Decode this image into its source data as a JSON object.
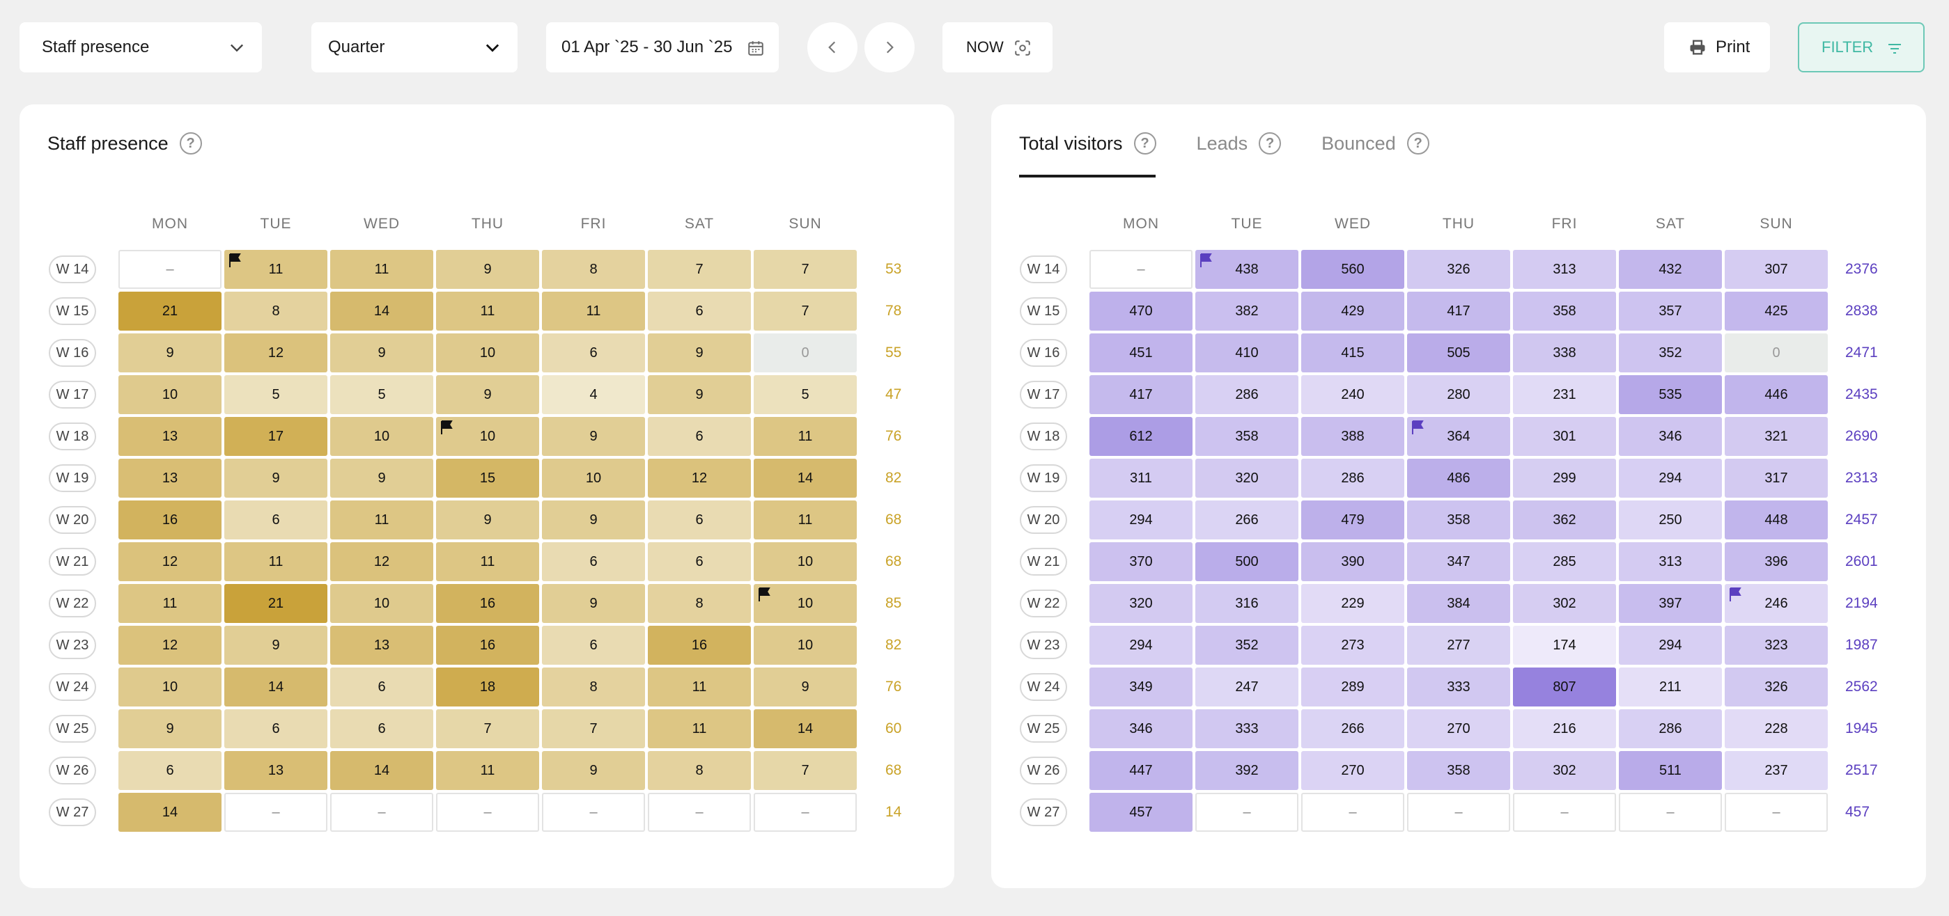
{
  "toolbar": {
    "report_select": "Staff presence",
    "period_select": "Quarter",
    "date_range": "01 Apr `25 - 30 Jun `25",
    "now_label": "NOW",
    "print_label": "Print",
    "filter_label": "FILTER"
  },
  "left_card": {
    "title": "Staff presence",
    "help": "?"
  },
  "right_card": {
    "tabs": [
      {
        "label": "Total visitors",
        "help": "?"
      },
      {
        "label": "Leads",
        "help": "?"
      },
      {
        "label": "Bounced",
        "help": "?"
      }
    ]
  },
  "days": [
    "MON",
    "TUE",
    "WED",
    "THU",
    "FRI",
    "SAT",
    "SUN"
  ],
  "weeks": [
    "W 14",
    "W 15",
    "W 16",
    "W 17",
    "W 18",
    "W 19",
    "W 20",
    "W 21",
    "W 22",
    "W 23",
    "W 24",
    "W 25",
    "W 26",
    "W 27"
  ],
  "empty_glyph": "–",
  "colors": {
    "gold_totals": "#c9a227",
    "purple_totals": "#5b3fc0",
    "filter_accent": "#3fb8a3"
  },
  "staff_presence": {
    "rows": [
      [
        null,
        11,
        11,
        9,
        8,
        7,
        7
      ],
      [
        21,
        8,
        14,
        11,
        11,
        6,
        7
      ],
      [
        9,
        12,
        9,
        10,
        6,
        9,
        0
      ],
      [
        10,
        5,
        5,
        9,
        4,
        9,
        5
      ],
      [
        13,
        17,
        10,
        10,
        9,
        6,
        11
      ],
      [
        13,
        9,
        9,
        15,
        10,
        12,
        14
      ],
      [
        16,
        6,
        11,
        9,
        9,
        6,
        11
      ],
      [
        12,
        11,
        12,
        11,
        6,
        6,
        10
      ],
      [
        11,
        21,
        10,
        16,
        9,
        8,
        10
      ],
      [
        12,
        9,
        13,
        16,
        6,
        16,
        10
      ],
      [
        10,
        14,
        6,
        18,
        8,
        11,
        9
      ],
      [
        9,
        6,
        6,
        7,
        7,
        11,
        14
      ],
      [
        6,
        13,
        14,
        11,
        9,
        8,
        7
      ],
      [
        14,
        null,
        null,
        null,
        null,
        null,
        null
      ]
    ],
    "totals": [
      "53",
      "78",
      "55",
      "47",
      "76",
      "82",
      "68",
      "68",
      "85",
      "82",
      "76",
      "60",
      "68",
      "14"
    ],
    "flags": [
      [
        0,
        1
      ],
      [
        4,
        3
      ],
      [
        8,
        6
      ]
    ]
  },
  "total_visitors": {
    "rows": [
      [
        null,
        438,
        560,
        326,
        313,
        432,
        307
      ],
      [
        470,
        382,
        429,
        417,
        358,
        357,
        425
      ],
      [
        451,
        410,
        415,
        505,
        338,
        352,
        0
      ],
      [
        417,
        286,
        240,
        280,
        231,
        535,
        446
      ],
      [
        612,
        358,
        388,
        364,
        301,
        346,
        321
      ],
      [
        311,
        320,
        286,
        486,
        299,
        294,
        317
      ],
      [
        294,
        266,
        479,
        358,
        362,
        250,
        448
      ],
      [
        370,
        500,
        390,
        347,
        285,
        313,
        396
      ],
      [
        320,
        316,
        229,
        384,
        302,
        397,
        246
      ],
      [
        294,
        352,
        273,
        277,
        174,
        294,
        323
      ],
      [
        349,
        247,
        289,
        333,
        807,
        211,
        326
      ],
      [
        346,
        333,
        266,
        270,
        216,
        286,
        228
      ],
      [
        447,
        392,
        270,
        358,
        302,
        511,
        237
      ],
      [
        457,
        null,
        null,
        null,
        null,
        null,
        null
      ]
    ],
    "totals": [
      "2376",
      "2838",
      "2471",
      "2435",
      "2690",
      "2313",
      "2457",
      "2601",
      "2194",
      "1987",
      "2562",
      "1945",
      "2517",
      "457"
    ],
    "flags": [
      [
        0,
        1
      ],
      [
        4,
        3
      ],
      [
        8,
        6
      ]
    ]
  }
}
